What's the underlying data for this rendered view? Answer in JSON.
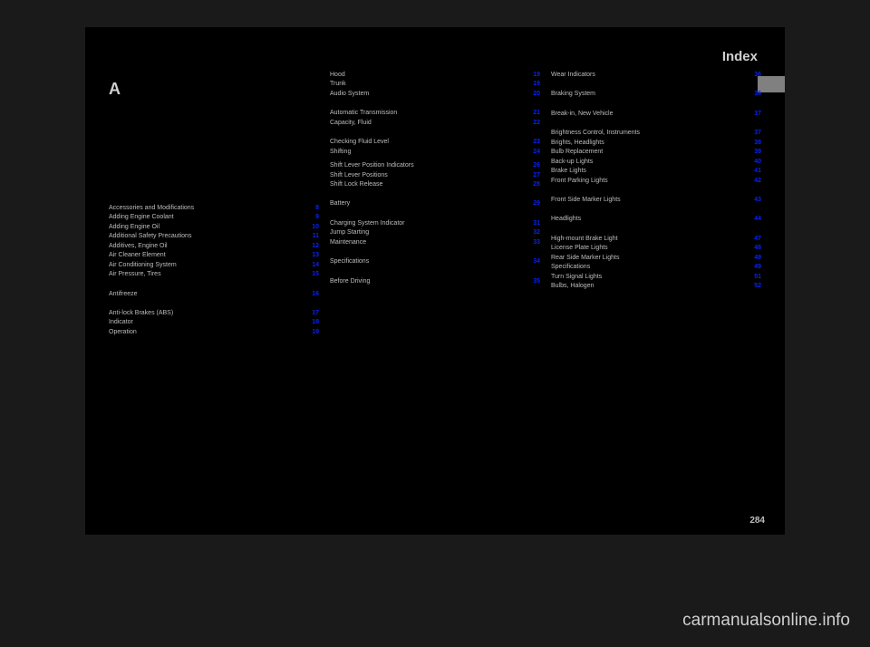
{
  "header_title": "Index",
  "page_number": "284",
  "watermark": "carmanualsonline.info",
  "col1": {
    "letter": "A",
    "items": [
      {
        "label": "Accessories and Modifications",
        "num": "8"
      },
      {
        "label": "Adding Engine Coolant",
        "num": "9"
      },
      {
        "label": "Adding Engine Oil",
        "num": "10"
      },
      {
        "label": "Additional Safety Precautions",
        "num": "11"
      },
      {
        "label": "Additives, Engine Oil",
        "num": "12"
      },
      {
        "label": "Air Cleaner Element",
        "num": "13"
      },
      {
        "label": "Air Conditioning System",
        "num": "14"
      },
      {
        "label": "Air Pressure, Tires",
        "num": "15",
        "gap_after": "md"
      },
      {
        "label": "Antifreeze",
        "num": "16",
        "gap_after": "md"
      },
      {
        "label": "Anti-lock Brakes (ABS)",
        "num": "17"
      },
      {
        "label": "  Indicator",
        "num": "18"
      },
      {
        "label": "  Operation",
        "num": "19"
      }
    ]
  },
  "col2": {
    "items": [
      {
        "label": "  Hood",
        "num": "19"
      },
      {
        "label": "  Trunk",
        "num": "19"
      },
      {
        "label": "Audio System",
        "num": "20",
        "gap_after": "md"
      },
      {
        "label": "Automatic Transmission",
        "num": "21"
      },
      {
        "label": "  Capacity, Fluid",
        "num": "22",
        "gap_after": "md"
      },
      {
        "label": "  Checking Fluid Level",
        "num": "23"
      },
      {
        "label": "  Shifting",
        "num": "24",
        "gap_after": "sm"
      },
      {
        "label": "  Shift Lever Position Indicators",
        "num": "26"
      },
      {
        "label": "  Shift Lever Positions",
        "num": "27"
      },
      {
        "label": "  Shift Lock Release",
        "num": "28",
        "gap_after": "md"
      },
      {
        "label": "Battery",
        "num": "29",
        "gap_after": "md"
      },
      {
        "label": "  Charging System Indicator",
        "num": "31"
      },
      {
        "label": "  Jump Starting",
        "num": "32"
      },
      {
        "label": "  Maintenance",
        "num": "33",
        "gap_after": "md"
      },
      {
        "label": "  Specifications",
        "num": "34",
        "gap_after": "md"
      },
      {
        "label": "Before Driving",
        "num": "35"
      }
    ]
  },
  "col3": {
    "items": [
      {
        "label": "  Wear Indicators",
        "num": "36",
        "gap_after": "md"
      },
      {
        "label": "Braking System",
        "num": "36",
        "gap_after": "md"
      },
      {
        "label": "Break-in, New Vehicle",
        "num": "37",
        "gap_after": "md"
      },
      {
        "label": "Brightness Control, Instruments",
        "num": "37"
      },
      {
        "label": "Brights, Headlights",
        "num": "38"
      },
      {
        "label": "Bulb Replacement",
        "num": "39"
      },
      {
        "label": "  Back-up Lights",
        "num": "40"
      },
      {
        "label": "  Brake Lights",
        "num": "41"
      },
      {
        "label": "  Front Parking Lights",
        "num": "42",
        "gap_after": "md"
      },
      {
        "label": "  Front Side Marker Lights",
        "num": "43",
        "gap_after": "md"
      },
      {
        "label": "  Headlights",
        "num": "44",
        "gap_after": "md"
      },
      {
        "label": "  High-mount Brake Light",
        "num": "47"
      },
      {
        "label": "  License Plate Lights",
        "num": "48"
      },
      {
        "label": "  Rear Side Marker Lights",
        "num": "49"
      },
      {
        "label": "  Specifications",
        "num": "49"
      },
      {
        "label": "  Turn Signal Lights",
        "num": "51"
      },
      {
        "label": "Bulbs, Halogen",
        "num": "52"
      }
    ]
  }
}
